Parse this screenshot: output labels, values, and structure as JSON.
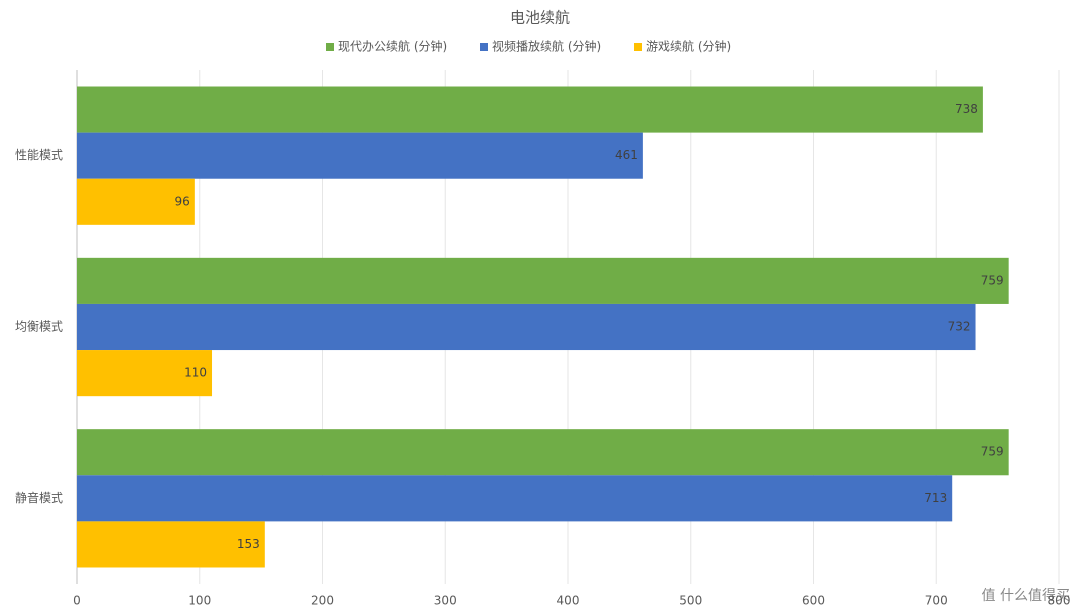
{
  "chart_data": {
    "type": "bar",
    "orientation": "horizontal",
    "title": "电池续航",
    "categories": [
      "性能模式",
      "均衡模式",
      "静音模式"
    ],
    "series": [
      {
        "name": "现代办公续航 (分钟)",
        "color": "#70ad47",
        "values": [
          738,
          759,
          759
        ]
      },
      {
        "name": "视频播放续航 (分钟)",
        "color": "#4472c4",
        "values": [
          461,
          732,
          713
        ]
      },
      {
        "name": "游戏续航 (分钟)",
        "color": "#ffc000",
        "values": [
          96,
          110,
          153
        ]
      }
    ],
    "xlim": [
      0,
      800
    ],
    "xticks": [
      0,
      100,
      200,
      300,
      400,
      500,
      600,
      700,
      800
    ],
    "grid": true,
    "legend": "top"
  },
  "watermark": "值 什么值得买"
}
